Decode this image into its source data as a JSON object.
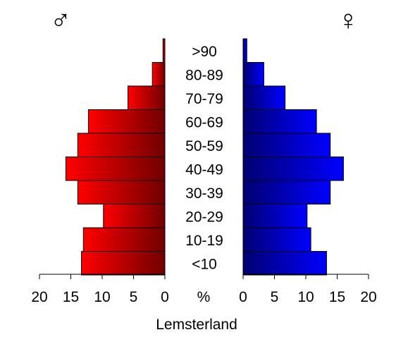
{
  "chart_data": {
    "type": "bar",
    "subtype": "population-pyramid",
    "title": "Lemsterland",
    "unit_label": "%",
    "male_symbol": "♂",
    "female_symbol": "♀",
    "categories": [
      ">90",
      "80-89",
      "70-79",
      "60-69",
      "50-59",
      "40-49",
      "30-39",
      "20-29",
      "10-19",
      "<10"
    ],
    "series": [
      {
        "name": "♂",
        "side": "left",
        "color": "#ff0000",
        "gradient_end": "#700000",
        "values": [
          0.3,
          2.0,
          5.9,
          12.2,
          13.9,
          15.8,
          13.9,
          9.8,
          13.0,
          13.3
        ]
      },
      {
        "name": "♀",
        "side": "right",
        "color": "#0000ff",
        "gradient_end": "#000070",
        "values": [
          0.6,
          3.3,
          6.7,
          11.7,
          13.9,
          16.0,
          13.9,
          10.2,
          10.8,
          13.3
        ]
      }
    ],
    "axis": {
      "xlim": [
        0,
        20
      ],
      "ticks": [
        0,
        5,
        10,
        15,
        20
      ]
    },
    "tick_labels_left": [
      "20",
      "15",
      "10",
      "5",
      "0"
    ],
    "tick_labels_right": [
      "0",
      "5",
      "10",
      "15",
      "20"
    ],
    "grid": false,
    "legend": "none"
  }
}
